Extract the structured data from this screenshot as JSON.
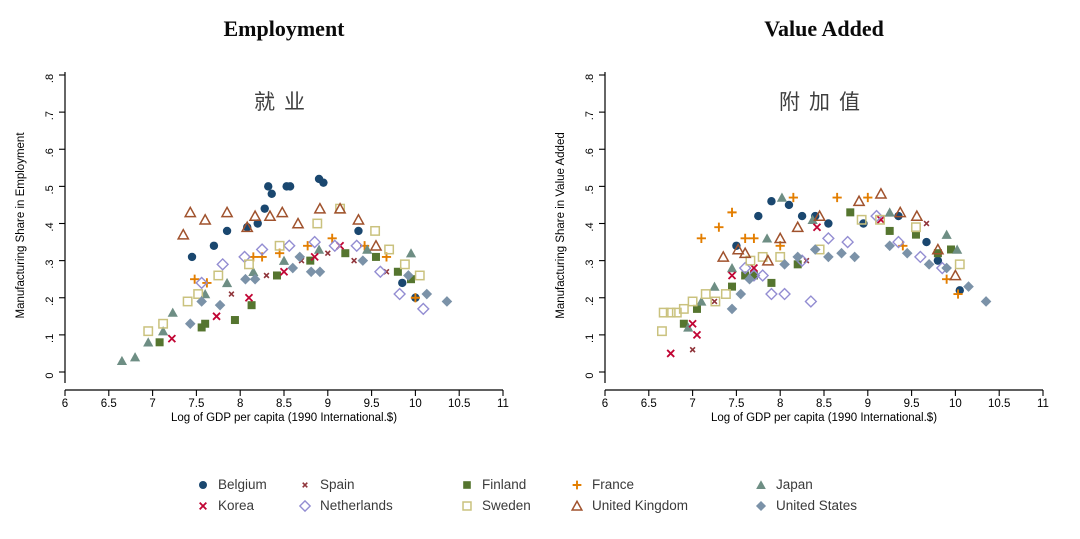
{
  "panels": [
    {
      "id": "employment",
      "title": "Employment",
      "annotation": "就业",
      "y_label": "Manufacturing Share in Employment"
    },
    {
      "id": "value_added",
      "title": "Value Added",
      "annotation": "附加值",
      "y_label": "Manufacturing Share in Value Added"
    }
  ],
  "x_axis": {
    "label": "Log of GDP per capita (1990 International.$)",
    "tick_values": [
      6,
      6.5,
      7,
      7.5,
      8,
      8.5,
      9,
      9.5,
      10,
      10.5,
      11
    ],
    "tick_labels": [
      "6",
      "6.5",
      "7",
      "7.5",
      "8",
      "8.5",
      "9",
      "9.5",
      "10",
      "10.5",
      "11"
    ],
    "range": [
      6,
      11
    ]
  },
  "y_axis": {
    "tick_values": [
      0,
      0.1,
      0.2,
      0.3,
      0.4,
      0.5,
      0.6,
      0.7,
      0.8
    ],
    "tick_labels": [
      "0",
      ".1",
      ".2",
      ".3",
      ".4",
      ".5",
      ".6",
      ".7",
      ".8"
    ],
    "range": [
      0,
      0.8
    ]
  },
  "countries": {
    "Belgium": {
      "marker": "circle",
      "color": "#1a476f"
    },
    "Spain": {
      "marker": "x-small",
      "color": "#90353b"
    },
    "Finland": {
      "marker": "square",
      "color": "#55752f"
    },
    "France": {
      "marker": "plus",
      "color": "#e37e00"
    },
    "Japan": {
      "marker": "triangle",
      "color": "#6e8e84"
    },
    "Korea": {
      "marker": "x",
      "color": "#c10534"
    },
    "Netherlands": {
      "marker": "diamond-open",
      "color": "#938dd2"
    },
    "Sweden": {
      "marker": "square-open",
      "color": "#cac27e"
    },
    "United Kingdom": {
      "marker": "triangle-open",
      "color": "#a0522d"
    },
    "United States": {
      "marker": "diamond",
      "color": "#7b92a8"
    }
  },
  "legend": {
    "order": [
      "Belgium",
      "Spain",
      "Finland",
      "France",
      "Japan",
      "Korea",
      "Netherlands",
      "Sweden",
      "United Kingdom",
      "United States"
    ],
    "rows": 2,
    "columns": 5
  },
  "chart_data": [
    {
      "type": "scatter",
      "title": "Employment",
      "xlabel": "Log of GDP per capita (1990 International.$)",
      "ylabel": "Manufacturing Share in Employment",
      "xlim": [
        6,
        11
      ],
      "ylim": [
        0,
        0.8
      ],
      "grid": false,
      "series": [
        {
          "name": "Belgium",
          "points": [
            [
              7.45,
              0.31
            ],
            [
              7.7,
              0.34
            ],
            [
              7.85,
              0.38
            ],
            [
              8.08,
              0.39
            ],
            [
              8.2,
              0.4
            ],
            [
              8.28,
              0.44
            ],
            [
              8.32,
              0.5
            ],
            [
              8.36,
              0.48
            ],
            [
              8.53,
              0.5
            ],
            [
              8.57,
              0.5
            ],
            [
              8.9,
              0.52
            ],
            [
              8.95,
              0.51
            ],
            [
              9.35,
              0.38
            ],
            [
              9.85,
              0.24
            ],
            [
              10.0,
              0.2
            ]
          ]
        },
        {
          "name": "Spain",
          "points": [
            [
              7.9,
              0.21
            ],
            [
              8.3,
              0.26
            ],
            [
              8.7,
              0.3
            ],
            [
              9.0,
              0.32
            ],
            [
              9.3,
              0.3
            ],
            [
              9.67,
              0.27
            ]
          ]
        },
        {
          "name": "Finland",
          "points": [
            [
              7.08,
              0.08
            ],
            [
              7.56,
              0.12
            ],
            [
              7.6,
              0.13
            ],
            [
              7.94,
              0.14
            ],
            [
              8.13,
              0.18
            ],
            [
              8.42,
              0.26
            ],
            [
              8.8,
              0.3
            ],
            [
              9.2,
              0.32
            ],
            [
              9.55,
              0.31
            ],
            [
              9.8,
              0.27
            ],
            [
              9.95,
              0.25
            ]
          ]
        },
        {
          "name": "France",
          "points": [
            [
              7.48,
              0.25
            ],
            [
              7.62,
              0.24
            ],
            [
              8.15,
              0.31
            ],
            [
              8.25,
              0.31
            ],
            [
              8.45,
              0.32
            ],
            [
              8.77,
              0.34
            ],
            [
              9.05,
              0.36
            ],
            [
              9.42,
              0.34
            ],
            [
              9.67,
              0.31
            ],
            [
              10.0,
              0.2
            ]
          ]
        },
        {
          "name": "Japan",
          "points": [
            [
              6.65,
              0.03
            ],
            [
              6.8,
              0.04
            ],
            [
              6.95,
              0.08
            ],
            [
              7.12,
              0.11
            ],
            [
              7.23,
              0.16
            ],
            [
              7.6,
              0.21
            ],
            [
              7.85,
              0.24
            ],
            [
              8.15,
              0.27
            ],
            [
              8.5,
              0.3
            ],
            [
              8.9,
              0.33
            ],
            [
              9.45,
              0.33
            ],
            [
              9.95,
              0.32
            ]
          ]
        },
        {
          "name": "Korea",
          "points": [
            [
              7.22,
              0.09
            ],
            [
              7.73,
              0.15
            ],
            [
              8.1,
              0.2
            ],
            [
              8.5,
              0.27
            ],
            [
              8.85,
              0.31
            ],
            [
              9.14,
              0.34
            ]
          ]
        },
        {
          "name": "Netherlands",
          "points": [
            [
              7.56,
              0.24
            ],
            [
              7.8,
              0.29
            ],
            [
              8.05,
              0.31
            ],
            [
              8.25,
              0.33
            ],
            [
              8.56,
              0.34
            ],
            [
              8.85,
              0.35
            ],
            [
              9.08,
              0.34
            ],
            [
              9.33,
              0.34
            ],
            [
              9.6,
              0.27
            ],
            [
              9.82,
              0.21
            ],
            [
              10.09,
              0.17
            ]
          ]
        },
        {
          "name": "Sweden",
          "points": [
            [
              6.95,
              0.11
            ],
            [
              7.12,
              0.13
            ],
            [
              7.4,
              0.19
            ],
            [
              7.52,
              0.21
            ],
            [
              7.75,
              0.26
            ],
            [
              8.1,
              0.29
            ],
            [
              8.45,
              0.34
            ],
            [
              8.88,
              0.4
            ],
            [
              9.14,
              0.44
            ],
            [
              9.54,
              0.38
            ],
            [
              9.7,
              0.33
            ],
            [
              9.88,
              0.29
            ],
            [
              10.05,
              0.26
            ]
          ]
        },
        {
          "name": "United Kingdom",
          "points": [
            [
              7.35,
              0.37
            ],
            [
              7.43,
              0.43
            ],
            [
              7.6,
              0.41
            ],
            [
              7.85,
              0.43
            ],
            [
              8.08,
              0.39
            ],
            [
              8.17,
              0.42
            ],
            [
              8.34,
              0.42
            ],
            [
              8.48,
              0.43
            ],
            [
              8.66,
              0.4
            ],
            [
              8.91,
              0.44
            ],
            [
              9.14,
              0.44
            ],
            [
              9.35,
              0.41
            ],
            [
              9.55,
              0.34
            ]
          ]
        },
        {
          "name": "United States",
          "points": [
            [
              7.43,
              0.13
            ],
            [
              7.56,
              0.19
            ],
            [
              7.77,
              0.18
            ],
            [
              8.06,
              0.25
            ],
            [
              8.17,
              0.25
            ],
            [
              8.6,
              0.28
            ],
            [
              8.68,
              0.31
            ],
            [
              8.81,
              0.27
            ],
            [
              8.91,
              0.27
            ],
            [
              9.4,
              0.3
            ],
            [
              9.92,
              0.26
            ],
            [
              10.13,
              0.21
            ],
            [
              10.36,
              0.19
            ]
          ]
        }
      ]
    },
    {
      "type": "scatter",
      "title": "Value Added",
      "xlabel": "Log of GDP per capita (1990 International.$)",
      "ylabel": "Manufacturing Share in Value Added",
      "xlim": [
        6,
        11
      ],
      "ylim": [
        0,
        0.8
      ],
      "grid": false,
      "series": [
        {
          "name": "Belgium",
          "points": [
            [
              7.5,
              0.34
            ],
            [
              7.75,
              0.42
            ],
            [
              7.9,
              0.46
            ],
            [
              8.1,
              0.45
            ],
            [
              8.25,
              0.42
            ],
            [
              8.4,
              0.42
            ],
            [
              8.55,
              0.4
            ],
            [
              8.95,
              0.4
            ],
            [
              9.35,
              0.42
            ],
            [
              9.67,
              0.35
            ],
            [
              9.8,
              0.3
            ],
            [
              10.05,
              0.22
            ]
          ]
        },
        {
          "name": "Spain",
          "points": [
            [
              7.0,
              0.06
            ],
            [
              7.25,
              0.19
            ],
            [
              8.3,
              0.3
            ],
            [
              9.67,
              0.4
            ]
          ]
        },
        {
          "name": "Finland",
          "points": [
            [
              6.9,
              0.13
            ],
            [
              7.05,
              0.17
            ],
            [
              7.45,
              0.23
            ],
            [
              7.6,
              0.26
            ],
            [
              7.7,
              0.26
            ],
            [
              7.9,
              0.24
            ],
            [
              8.2,
              0.29
            ],
            [
              8.8,
              0.43
            ],
            [
              9.25,
              0.38
            ],
            [
              9.55,
              0.37
            ],
            [
              9.8,
              0.32
            ],
            [
              9.95,
              0.33
            ]
          ]
        },
        {
          "name": "France",
          "points": [
            [
              7.1,
              0.36
            ],
            [
              7.3,
              0.39
            ],
            [
              7.45,
              0.43
            ],
            [
              7.6,
              0.36
            ],
            [
              7.7,
              0.36
            ],
            [
              8.0,
              0.34
            ],
            [
              8.15,
              0.47
            ],
            [
              8.65,
              0.47
            ],
            [
              9.0,
              0.47
            ],
            [
              9.4,
              0.34
            ],
            [
              9.9,
              0.25
            ],
            [
              10.03,
              0.21
            ]
          ]
        },
        {
          "name": "Japan",
          "points": [
            [
              6.95,
              0.12
            ],
            [
              7.1,
              0.19
            ],
            [
              7.25,
              0.23
            ],
            [
              7.45,
              0.28
            ],
            [
              7.85,
              0.36
            ],
            [
              8.02,
              0.47
            ],
            [
              8.37,
              0.41
            ],
            [
              9.25,
              0.43
            ],
            [
              9.9,
              0.37
            ],
            [
              10.02,
              0.33
            ]
          ]
        },
        {
          "name": "Korea",
          "points": [
            [
              6.75,
              0.05
            ],
            [
              7.0,
              0.13
            ],
            [
              7.05,
              0.1
            ],
            [
              7.45,
              0.26
            ],
            [
              7.7,
              0.28
            ],
            [
              8.42,
              0.39
            ],
            [
              9.15,
              0.41
            ]
          ]
        },
        {
          "name": "Netherlands",
          "points": [
            [
              7.6,
              0.28
            ],
            [
              7.7,
              0.26
            ],
            [
              7.8,
              0.26
            ],
            [
              7.9,
              0.21
            ],
            [
              8.05,
              0.21
            ],
            [
              8.25,
              0.3
            ],
            [
              8.35,
              0.19
            ],
            [
              8.55,
              0.36
            ],
            [
              8.77,
              0.35
            ],
            [
              9.1,
              0.42
            ],
            [
              9.35,
              0.35
            ],
            [
              9.6,
              0.31
            ],
            [
              9.85,
              0.28
            ]
          ]
        },
        {
          "name": "Sweden",
          "points": [
            [
              6.65,
              0.11
            ],
            [
              6.67,
              0.16
            ],
            [
              6.75,
              0.16
            ],
            [
              6.82,
              0.16
            ],
            [
              6.9,
              0.17
            ],
            [
              7.0,
              0.19
            ],
            [
              7.15,
              0.21
            ],
            [
              7.26,
              0.19
            ],
            [
              7.38,
              0.21
            ],
            [
              7.66,
              0.3
            ],
            [
              7.8,
              0.31
            ],
            [
              8.0,
              0.31
            ],
            [
              8.45,
              0.33
            ],
            [
              8.93,
              0.41
            ],
            [
              9.14,
              0.41
            ],
            [
              9.55,
              0.39
            ],
            [
              10.05,
              0.29
            ]
          ]
        },
        {
          "name": "United Kingdom",
          "points": [
            [
              7.35,
              0.31
            ],
            [
              7.52,
              0.33
            ],
            [
              7.6,
              0.32
            ],
            [
              7.86,
              0.3
            ],
            [
              8.0,
              0.36
            ],
            [
              8.2,
              0.39
            ],
            [
              8.45,
              0.42
            ],
            [
              8.9,
              0.46
            ],
            [
              9.15,
              0.48
            ],
            [
              9.37,
              0.43
            ],
            [
              9.56,
              0.42
            ],
            [
              9.8,
              0.33
            ],
            [
              10.0,
              0.26
            ]
          ]
        },
        {
          "name": "United States",
          "points": [
            [
              7.45,
              0.17
            ],
            [
              7.55,
              0.21
            ],
            [
              7.65,
              0.25
            ],
            [
              8.05,
              0.29
            ],
            [
              8.2,
              0.31
            ],
            [
              8.4,
              0.33
            ],
            [
              8.55,
              0.31
            ],
            [
              8.7,
              0.32
            ],
            [
              8.85,
              0.31
            ],
            [
              9.25,
              0.34
            ],
            [
              9.45,
              0.32
            ],
            [
              9.7,
              0.29
            ],
            [
              9.9,
              0.28
            ],
            [
              10.15,
              0.23
            ],
            [
              10.35,
              0.19
            ]
          ]
        }
      ]
    }
  ]
}
